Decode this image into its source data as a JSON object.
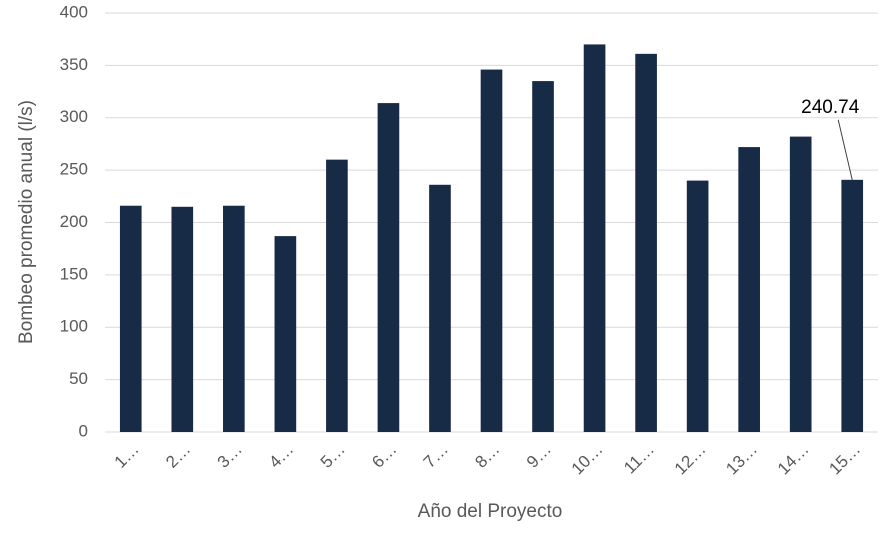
{
  "chart_data": {
    "type": "bar",
    "y_label": "Bombeo promedio anual (l/s)",
    "x_label": "Año del Proyecto",
    "categories": [
      "1…",
      "2…",
      "3…",
      "4…",
      "5…",
      "6…",
      "7…",
      "8…",
      "9…",
      "10…",
      "11…",
      "12…",
      "13…",
      "14…",
      "15…"
    ],
    "values": [
      216,
      215,
      216,
      187,
      260,
      314,
      236,
      346,
      335,
      370,
      361,
      240,
      272,
      282,
      240.74
    ],
    "value_labels": [
      null,
      null,
      null,
      null,
      null,
      null,
      null,
      null,
      null,
      null,
      null,
      null,
      null,
      null,
      "240.74"
    ],
    "color": "#172a46",
    "ylim": [
      0,
      400
    ],
    "yticks": [
      0,
      50,
      100,
      150,
      200,
      250,
      300,
      350,
      400
    ],
    "grid": true
  }
}
